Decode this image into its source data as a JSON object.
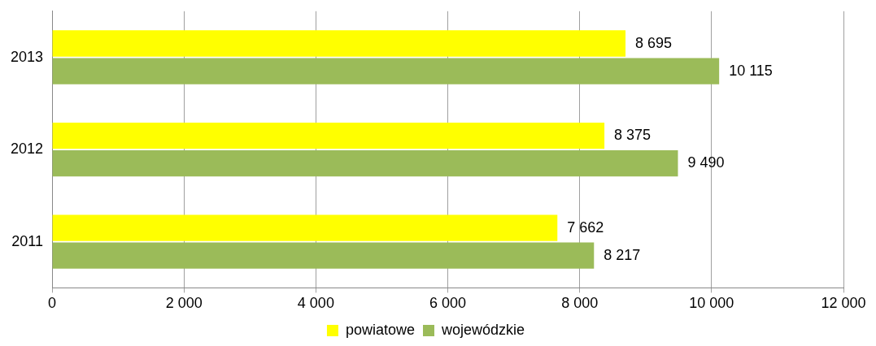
{
  "chart_data": {
    "type": "bar",
    "orientation": "horizontal",
    "categories": [
      "2013",
      "2012",
      "2011"
    ],
    "series": [
      {
        "name": "powiatowe",
        "color": "#ffff00",
        "values": [
          8695,
          8375,
          7662
        ],
        "value_labels": [
          "8 695",
          "8 375",
          "7 662"
        ]
      },
      {
        "name": "wojewódzkie",
        "color": "#9bbb59",
        "values": [
          10115,
          9490,
          8217
        ],
        "value_labels": [
          "10 115",
          "9 490",
          "8 217"
        ]
      }
    ],
    "xlim": [
      0,
      12000
    ],
    "xticks": [
      0,
      {
        "value": 2000,
        "label": "2 000"
      },
      {
        "value": 4000,
        "label": "4 000"
      },
      {
        "value": 6000,
        "label": "6 000"
      },
      {
        "value": 8000,
        "label": "8 000"
      },
      {
        "value": 10000,
        "label": "10 000"
      },
      {
        "value": 12000,
        "label": "12 000"
      }
    ],
    "grid": "x",
    "legend": "bottom"
  }
}
